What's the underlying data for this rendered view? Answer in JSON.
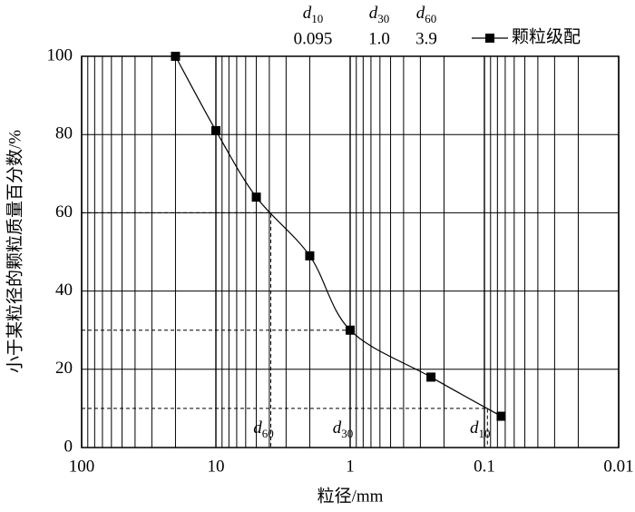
{
  "chart_data": {
    "type": "line",
    "x_label": "粒径/mm",
    "y_label": "小于某粒径的颗粒质量百分数/%",
    "log_x": true,
    "grid": true,
    "xlim": [
      100,
      0.01
    ],
    "xticks": [
      100,
      10,
      1,
      0.1,
      0.01
    ],
    "ylim": [
      0,
      100
    ],
    "yticks": [
      0,
      20,
      40,
      60,
      80,
      100
    ],
    "legend_position": "top-right",
    "series": [
      {
        "name": "颗粒级配",
        "color": "#000000",
        "x": [
          20,
          10,
          5,
          2,
          1,
          0.25,
          0.075
        ],
        "values": [
          100,
          81,
          64,
          49,
          30,
          18,
          8
        ]
      }
    ],
    "markers": [
      {
        "symbol": "d",
        "percent": 10,
        "size": 0.095
      },
      {
        "symbol": "d",
        "percent": 30,
        "size": {
          "value": 1,
          "label": "1.0"
        }
      },
      {
        "symbol": "d",
        "percent": 60,
        "size": 3.9
      }
    ]
  }
}
